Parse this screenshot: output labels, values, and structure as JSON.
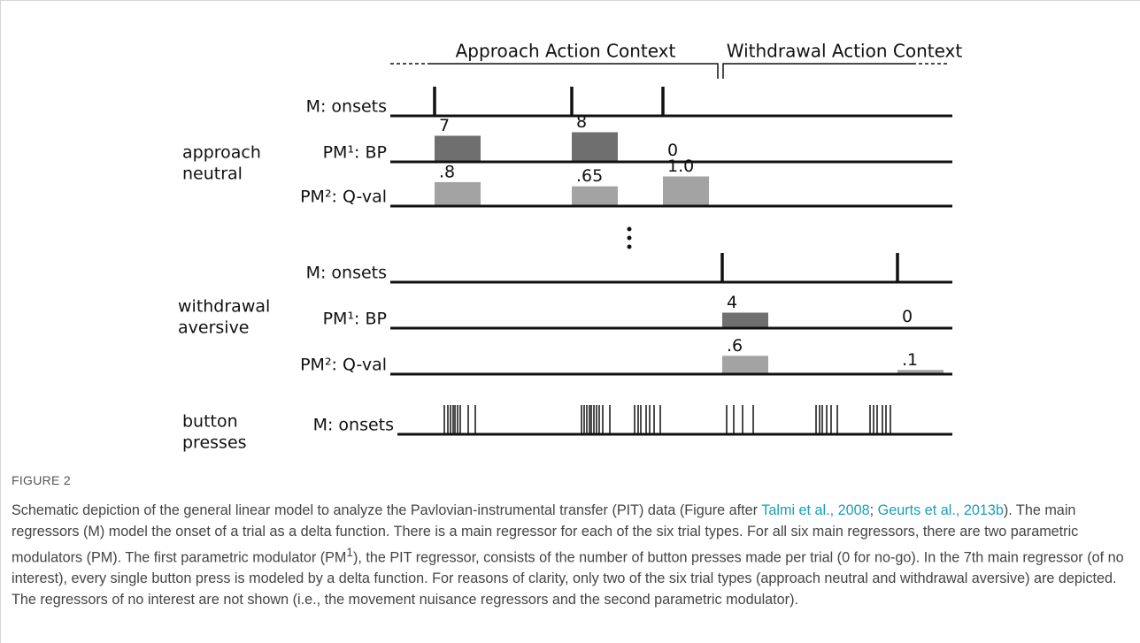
{
  "figure": {
    "header": {
      "approach": "Approach Action Context",
      "withdrawal": "Withdrawal Action Context"
    },
    "groups": [
      {
        "label": [
          "approach",
          "neutral"
        ],
        "rows": [
          {
            "label": "M: onsets"
          },
          {
            "label": "PM¹: BP",
            "values": [
              7,
              8,
              0
            ]
          },
          {
            "label": "PM²: Q-val",
            "values": [
              0.8,
              0.65,
              1.0
            ],
            "value_labels": [
              ".8",
              ".65",
              "1.0"
            ]
          }
        ]
      },
      {
        "label": [
          "withdrawal",
          "aversive"
        ],
        "rows": [
          {
            "label": "M: onsets"
          },
          {
            "label": "PM¹: BP",
            "values": [
              4,
              0
            ]
          },
          {
            "label": "PM²: Q-val",
            "values": [
              0.6,
              0.1
            ],
            "value_labels": [
              ".6",
              ".1"
            ]
          }
        ]
      },
      {
        "label": [
          "button",
          "presses"
        ],
        "rows": [
          {
            "label": "M: onsets"
          }
        ]
      }
    ],
    "label": "FIGURE 2",
    "caption": [
      {
        "text": "Schematic depiction of the general linear model to analyze the Pavlovian-instrumental transfer (PIT) data (Figure after "
      },
      {
        "text": "Talmi et al., 2008",
        "link": true
      },
      {
        "text": "; "
      },
      {
        "text": "Geurts et al., 2013b",
        "link": true
      },
      {
        "text": "). The main regressors (M) model the onset of a trial as a delta function. There is a main regressor for each of the six trial types. For all six main regressors, there are two parametric modulators (PM). The first parametric modulator (PM"
      },
      {
        "text": "1",
        "sup": true
      },
      {
        "text": "), the PIT regressor, consists of the number of button presses made per trial (0 for no-go). In the 7th main regressor (of no interest), every single button press is modeled by a delta function. For reasons of clarity, only two of the six trial types (approach neutral and withdrawal aversive) are depicted. The regressors of no interest are not shown (i.e., the movement nuisance regressors and the second parametric modulator)."
      }
    ]
  }
}
